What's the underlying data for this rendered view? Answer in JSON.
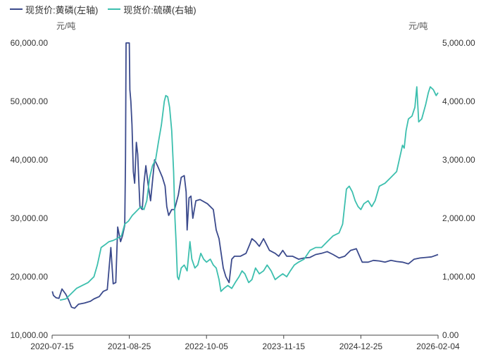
{
  "chart_data": {
    "type": "line",
    "title": "",
    "left_unit": "元/吨",
    "right_unit": "元/吨",
    "x_ticks": [
      "2020-07-15",
      "2021-08-25",
      "2022-10-05",
      "2023-11-15",
      "2024-12-25",
      "2026-02-04"
    ],
    "xlim": [
      "2020-07-15",
      "2026-02-04"
    ],
    "y_left": {
      "ticks": [
        "10,000.00",
        "20,000.00",
        "30,000.00",
        "40,000.00",
        "50,000.00",
        "60,000.00"
      ],
      "ylim": [
        10000,
        60000
      ]
    },
    "y_right": {
      "ticks": [
        "0.00",
        "1,000.00",
        "2,000.00",
        "3,000.00",
        "4,000.00",
        "5,000.00"
      ],
      "ylim": [
        0,
        5000
      ]
    },
    "grid": false,
    "legend_position": "top-left",
    "series": [
      {
        "name": "现货价:黄磷(左轴)",
        "axis": "left",
        "color": "#3b4a8c",
        "points": [
          [
            "2020-07-16",
            17500
          ],
          [
            "2020-07-22",
            16800
          ],
          [
            "2020-08-05",
            16400
          ],
          [
            "2020-08-20",
            16300
          ],
          [
            "2020-09-05",
            17900
          ],
          [
            "2020-09-25",
            17000
          ],
          [
            "2020-10-10",
            16000
          ],
          [
            "2020-10-25",
            14800
          ],
          [
            "2020-11-10",
            14600
          ],
          [
            "2020-12-01",
            15300
          ],
          [
            "2021-01-01",
            15500
          ],
          [
            "2021-02-01",
            15800
          ],
          [
            "2021-02-20",
            16200
          ],
          [
            "2021-03-20",
            16600
          ],
          [
            "2021-04-10",
            17500
          ],
          [
            "2021-05-01",
            17800
          ],
          [
            "2021-05-20",
            25000
          ],
          [
            "2021-06-01",
            18800
          ],
          [
            "2021-06-15",
            19000
          ],
          [
            "2021-06-25",
            28500
          ],
          [
            "2021-07-10",
            26000
          ],
          [
            "2021-07-20",
            27000
          ],
          [
            "2021-08-01",
            28800
          ],
          [
            "2021-08-05",
            40000
          ],
          [
            "2021-08-08",
            60000
          ],
          [
            "2021-08-25",
            60000
          ],
          [
            "2021-08-28",
            52000
          ],
          [
            "2021-09-02",
            50000
          ],
          [
            "2021-09-08",
            46000
          ],
          [
            "2021-09-15",
            38000
          ],
          [
            "2021-09-22",
            36000
          ],
          [
            "2021-10-01",
            43000
          ],
          [
            "2021-10-08",
            41000
          ],
          [
            "2021-10-15",
            35500
          ],
          [
            "2021-10-20",
            32000
          ],
          [
            "2021-11-01",
            31500
          ],
          [
            "2021-11-10",
            36000
          ],
          [
            "2021-11-20",
            39000
          ],
          [
            "2021-12-01",
            36000
          ],
          [
            "2021-12-15",
            33000
          ],
          [
            "2022-01-05",
            40000
          ],
          [
            "2022-01-20",
            39000
          ],
          [
            "2022-02-15",
            37000
          ],
          [
            "2022-03-01",
            35500
          ],
          [
            "2022-03-10",
            32000
          ],
          [
            "2022-03-20",
            30500
          ],
          [
            "2022-04-05",
            31500
          ],
          [
            "2022-04-20",
            31500
          ],
          [
            "2022-05-10",
            34000
          ],
          [
            "2022-05-25",
            37000
          ],
          [
            "2022-06-10",
            37300
          ],
          [
            "2022-06-20",
            34500
          ],
          [
            "2022-06-25",
            28000
          ],
          [
            "2022-07-05",
            33500
          ],
          [
            "2022-07-15",
            33800
          ],
          [
            "2022-07-25",
            30000
          ],
          [
            "2022-08-10",
            33000
          ],
          [
            "2022-09-01",
            33200
          ],
          [
            "2022-10-10",
            32500
          ],
          [
            "2022-11-10",
            31500
          ],
          [
            "2022-11-25",
            28000
          ],
          [
            "2022-12-10",
            26500
          ],
          [
            "2023-01-01",
            21500
          ],
          [
            "2023-01-15",
            20000
          ],
          [
            "2023-02-01",
            19000
          ],
          [
            "2023-02-15",
            23000
          ],
          [
            "2023-03-01",
            23500
          ],
          [
            "2023-04-01",
            23500
          ],
          [
            "2023-05-01",
            24000
          ],
          [
            "2023-05-20",
            25500
          ],
          [
            "2023-06-01",
            26500
          ],
          [
            "2023-06-20",
            26000
          ],
          [
            "2023-07-10",
            25200
          ],
          [
            "2023-08-01",
            26500
          ],
          [
            "2023-09-01",
            24500
          ],
          [
            "2023-10-01",
            24000
          ],
          [
            "2023-10-20",
            23500
          ],
          [
            "2023-11-10",
            24500
          ],
          [
            "2023-12-01",
            23500
          ],
          [
            "2024-01-01",
            23500
          ],
          [
            "2024-02-01",
            23000
          ],
          [
            "2024-03-01",
            23200
          ],
          [
            "2024-04-01",
            23300
          ],
          [
            "2024-05-01",
            23800
          ],
          [
            "2024-06-01",
            24000
          ],
          [
            "2024-07-01",
            24300
          ],
          [
            "2024-08-01",
            23800
          ],
          [
            "2024-09-01",
            23200
          ],
          [
            "2024-10-01",
            23500
          ],
          [
            "2024-11-01",
            24500
          ],
          [
            "2024-12-01",
            24800
          ],
          [
            "2025-01-01",
            22500
          ],
          [
            "2025-02-01",
            22500
          ],
          [
            "2025-03-01",
            22800
          ],
          [
            "2025-04-01",
            22700
          ],
          [
            "2025-05-01",
            22500
          ],
          [
            "2025-06-01",
            22800
          ],
          [
            "2025-07-01",
            22600
          ],
          [
            "2025-08-01",
            22500
          ],
          [
            "2025-09-01",
            22200
          ],
          [
            "2025-10-01",
            23000
          ],
          [
            "2025-11-01",
            23200
          ],
          [
            "2025-12-01",
            23300
          ],
          [
            "2026-01-01",
            23400
          ],
          [
            "2026-02-04",
            23800
          ]
        ]
      },
      {
        "name": "现货价:硫磺(右轴)",
        "axis": "right",
        "color": "#3cbfae",
        "points": [
          [
            "2020-08-25",
            600
          ],
          [
            "2020-09-25",
            620
          ],
          [
            "2020-10-20",
            700
          ],
          [
            "2020-11-20",
            800
          ],
          [
            "2020-12-20",
            850
          ],
          [
            "2021-01-20",
            900
          ],
          [
            "2021-02-20",
            1000
          ],
          [
            "2021-03-10",
            1200
          ],
          [
            "2021-03-30",
            1500
          ],
          [
            "2021-04-20",
            1550
          ],
          [
            "2021-05-10",
            1600
          ],
          [
            "2021-06-01",
            1620
          ],
          [
            "2021-06-20",
            1650
          ],
          [
            "2021-07-15",
            1700
          ],
          [
            "2021-08-01",
            1900
          ],
          [
            "2021-08-20",
            1950
          ],
          [
            "2021-09-10",
            2050
          ],
          [
            "2021-09-25",
            2100
          ],
          [
            "2021-10-10",
            2150
          ],
          [
            "2021-10-25",
            2200
          ],
          [
            "2021-11-10",
            2150
          ],
          [
            "2021-11-25",
            2300
          ],
          [
            "2021-12-10",
            2700
          ],
          [
            "2021-12-25",
            2900
          ],
          [
            "2022-01-10",
            3000
          ],
          [
            "2022-01-25",
            3300
          ],
          [
            "2022-02-10",
            3600
          ],
          [
            "2022-02-25",
            4000
          ],
          [
            "2022-03-05",
            4100
          ],
          [
            "2022-03-15",
            4080
          ],
          [
            "2022-03-25",
            3900
          ],
          [
            "2022-04-05",
            3500
          ],
          [
            "2022-04-15",
            2800
          ],
          [
            "2022-04-22",
            2000
          ],
          [
            "2022-04-28",
            1600
          ],
          [
            "2022-05-05",
            1000
          ],
          [
            "2022-05-12",
            950
          ],
          [
            "2022-05-25",
            1150
          ],
          [
            "2022-06-10",
            1200
          ],
          [
            "2022-06-25",
            1100
          ],
          [
            "2022-07-10",
            1600
          ],
          [
            "2022-07-20",
            1300
          ],
          [
            "2022-08-05",
            1150
          ],
          [
            "2022-08-20",
            1200
          ],
          [
            "2022-09-05",
            1400
          ],
          [
            "2022-09-20",
            1300
          ],
          [
            "2022-10-05",
            1250
          ],
          [
            "2022-10-25",
            1300
          ],
          [
            "2022-11-10",
            1200
          ],
          [
            "2022-11-25",
            1150
          ],
          [
            "2022-12-10",
            950
          ],
          [
            "2022-12-20",
            750
          ],
          [
            "2023-01-05",
            800
          ],
          [
            "2023-01-25",
            850
          ],
          [
            "2023-02-15",
            800
          ],
          [
            "2023-03-05",
            900
          ],
          [
            "2023-03-25",
            1000
          ],
          [
            "2023-04-10",
            1100
          ],
          [
            "2023-04-25",
            1050
          ],
          [
            "2023-05-15",
            900
          ],
          [
            "2023-06-01",
            950
          ],
          [
            "2023-06-20",
            1150
          ],
          [
            "2023-07-10",
            1050
          ],
          [
            "2023-08-01",
            1100
          ],
          [
            "2023-08-20",
            1200
          ],
          [
            "2023-09-10",
            1100
          ],
          [
            "2023-10-01",
            950
          ],
          [
            "2023-10-20",
            1000
          ],
          [
            "2023-11-10",
            1050
          ],
          [
            "2023-12-01",
            1000
          ],
          [
            "2023-12-20",
            1100
          ],
          [
            "2024-01-10",
            1200
          ],
          [
            "2024-02-01",
            1250
          ],
          [
            "2024-03-01",
            1300
          ],
          [
            "2024-04-01",
            1450
          ],
          [
            "2024-05-01",
            1500
          ],
          [
            "2024-06-01",
            1500
          ],
          [
            "2024-07-01",
            1600
          ],
          [
            "2024-08-01",
            1700
          ],
          [
            "2024-09-01",
            1750
          ],
          [
            "2024-09-20",
            1900
          ],
          [
            "2024-10-10",
            2500
          ],
          [
            "2024-10-25",
            2550
          ],
          [
            "2024-11-10",
            2450
          ],
          [
            "2024-11-25",
            2300
          ],
          [
            "2024-12-10",
            2200
          ],
          [
            "2024-12-25",
            2150
          ],
          [
            "2025-01-10",
            2250
          ],
          [
            "2025-02-01",
            2300
          ],
          [
            "2025-02-20",
            2200
          ],
          [
            "2025-03-10",
            2300
          ],
          [
            "2025-04-01",
            2550
          ],
          [
            "2025-05-01",
            2600
          ],
          [
            "2025-06-01",
            2700
          ],
          [
            "2025-07-01",
            2800
          ],
          [
            "2025-08-01",
            3250
          ],
          [
            "2025-08-10",
            3200
          ],
          [
            "2025-08-20",
            3500
          ],
          [
            "2025-09-01",
            3700
          ],
          [
            "2025-09-20",
            3750
          ],
          [
            "2025-10-05",
            3900
          ],
          [
            "2025-10-15",
            4250
          ],
          [
            "2025-10-25",
            3650
          ],
          [
            "2025-11-10",
            3700
          ],
          [
            "2025-12-01",
            3950
          ],
          [
            "2025-12-15",
            4150
          ],
          [
            "2025-12-25",
            4250
          ],
          [
            "2026-01-10",
            4200
          ],
          [
            "2026-01-25",
            4100
          ],
          [
            "2026-02-04",
            4150
          ]
        ]
      }
    ]
  }
}
